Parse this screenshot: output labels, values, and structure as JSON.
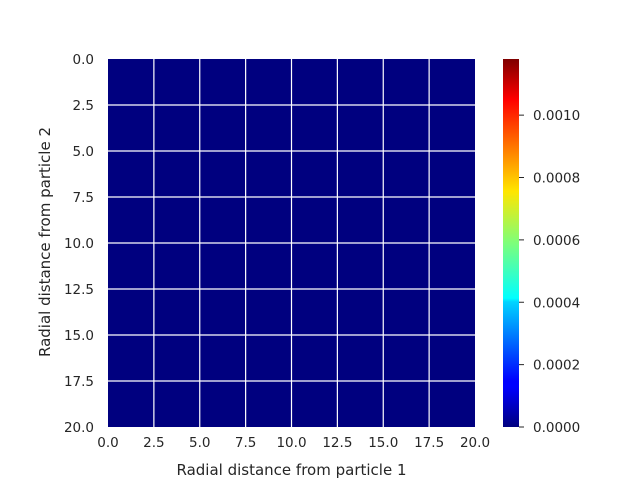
{
  "chart_data": {
    "type": "heatmap",
    "title": "",
    "xlabel": "Radial distance from particle 1",
    "ylabel": "Radial distance from particle 2",
    "xlim": [
      0,
      20
    ],
    "ylim": [
      20,
      0
    ],
    "x_ticks": [
      "0.0",
      "2.5",
      "5.0",
      "7.5",
      "10.0",
      "12.5",
      "15.0",
      "17.5",
      "20.0"
    ],
    "y_ticks": [
      "0.0",
      "2.5",
      "5.0",
      "7.5",
      "10.0",
      "12.5",
      "15.0",
      "17.5",
      "20.0"
    ],
    "y_axis_inverted": true,
    "grid": true,
    "grid_color": "#ffffff",
    "values_note": "uniform field",
    "value": 0.0,
    "colormap": "jet",
    "colorbar": {
      "vmin": 0.0,
      "vmax": 0.00118,
      "ticks": [
        0.0,
        0.0002,
        0.0004,
        0.0006,
        0.0008,
        0.001
      ],
      "tick_labels": [
        "0.0000",
        "0.0002",
        "0.0004",
        "0.0006",
        "0.0008",
        "0.0010"
      ],
      "placement": "right"
    },
    "colors": {
      "low": "#00007f",
      "high": "#7f0000"
    }
  }
}
